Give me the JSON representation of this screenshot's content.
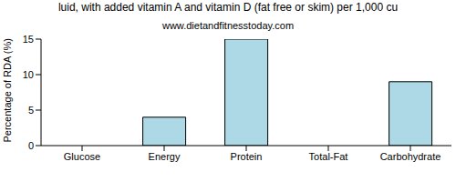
{
  "chart_data": {
    "type": "bar",
    "title": "luid, with added vitamin A and vitamin D (fat free or skim) per 1,000 cu",
    "subtitle": "www.dietandfitnesstoday.com",
    "y_label": "Percentage of RDA (%)",
    "categories": [
      "Glucose",
      "Energy",
      "Protein",
      "Total-Fat",
      "Carbohydrate"
    ],
    "values": [
      0,
      4,
      15,
      0,
      9
    ],
    "color": "#add8e6",
    "ylim": [
      0,
      15
    ],
    "yticks": [
      0,
      5,
      10,
      15
    ],
    "grid": false
  }
}
